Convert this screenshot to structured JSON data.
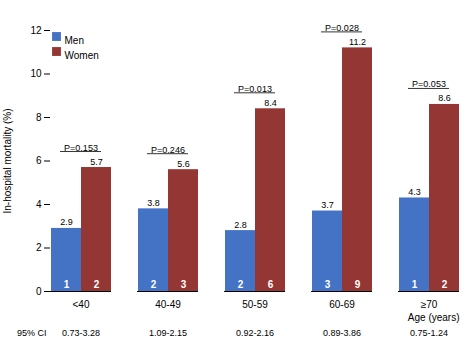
{
  "chart_data": {
    "type": "bar",
    "categories": [
      "<40",
      "40-49",
      "50-59",
      "60-69",
      "≥70"
    ],
    "series": [
      {
        "name": "Men",
        "color": "#4472C4",
        "values": [
          2.9,
          3.8,
          2.8,
          3.7,
          4.3
        ],
        "counts": [
          1,
          2,
          2,
          3,
          1
        ]
      },
      {
        "name": "Women",
        "color": "#943634",
        "values": [
          5.7,
          5.6,
          8.4,
          11.2,
          8.6
        ],
        "counts": [
          2,
          3,
          6,
          9,
          2
        ]
      }
    ],
    "p_values": [
      "P=0.153",
      "P=0.246",
      "P=0.013",
      "P=0.028",
      "P=0.053"
    ],
    "ci_label": "95% CI",
    "ci_values": [
      "0.73-3.28",
      "1.09-2.15",
      "0.92-2.16",
      "0.89-3.86",
      "0.75-1.24"
    ],
    "xlabel": "Age (years)",
    "ylabel": "In-hospital mortality (%)",
    "ylim": [
      0,
      12
    ],
    "yticks": [
      0,
      2,
      4,
      6,
      8,
      10,
      12
    ],
    "data_labels": true,
    "legend": "upper left",
    "grid": false
  }
}
